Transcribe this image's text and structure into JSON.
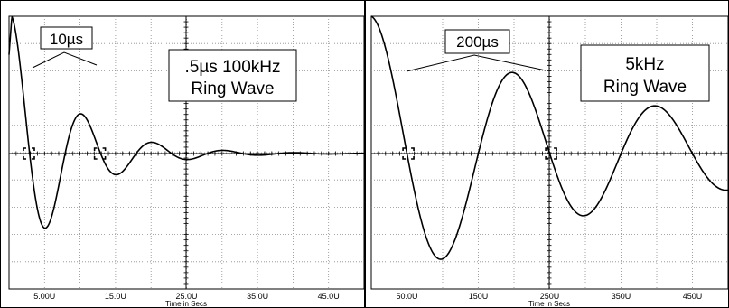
{
  "chart_data": [
    {
      "type": "line",
      "xlabel": "Time in Secs",
      "xlim": [
        0,
        50
      ],
      "ylim": [
        -1,
        1
      ],
      "x_ticks": [
        {
          "value": 5,
          "label": "5.00U"
        },
        {
          "value": 15,
          "label": "15.0U"
        },
        {
          "value": 25,
          "label": "25.0U"
        },
        {
          "value": 35,
          "label": "35.0U"
        },
        {
          "value": 45,
          "label": "45.0U"
        }
      ],
      "grid": true,
      "waveform": {
        "period": 10,
        "decay_per_unit": 0.126,
        "peak": 1.0,
        "start_x": 0.4
      },
      "cursor_x": [
        2.8,
        12.8
      ],
      "period_label": "10µs",
      "annotation": [
        ".5µs 100kHz",
        "Ring Wave"
      ]
    },
    {
      "type": "line",
      "xlabel": "Time in Secs",
      "xlim": [
        0,
        500
      ],
      "ylim": [
        -1,
        1
      ],
      "x_ticks": [
        {
          "value": 50,
          "label": "50.0U"
        },
        {
          "value": 150,
          "label": "150U"
        },
        {
          "value": 250,
          "label": "250U"
        },
        {
          "value": 350,
          "label": "350U"
        },
        {
          "value": 450,
          "label": "450U"
        }
      ],
      "grid": true,
      "waveform": {
        "period": 200,
        "decay_per_unit": 0.00265,
        "peak": 1.0,
        "start_x": 0
      },
      "cursor_x": [
        52,
        252
      ],
      "period_label": "200µs",
      "annotation": [
        "5kHz",
        "Ring Wave"
      ]
    }
  ]
}
